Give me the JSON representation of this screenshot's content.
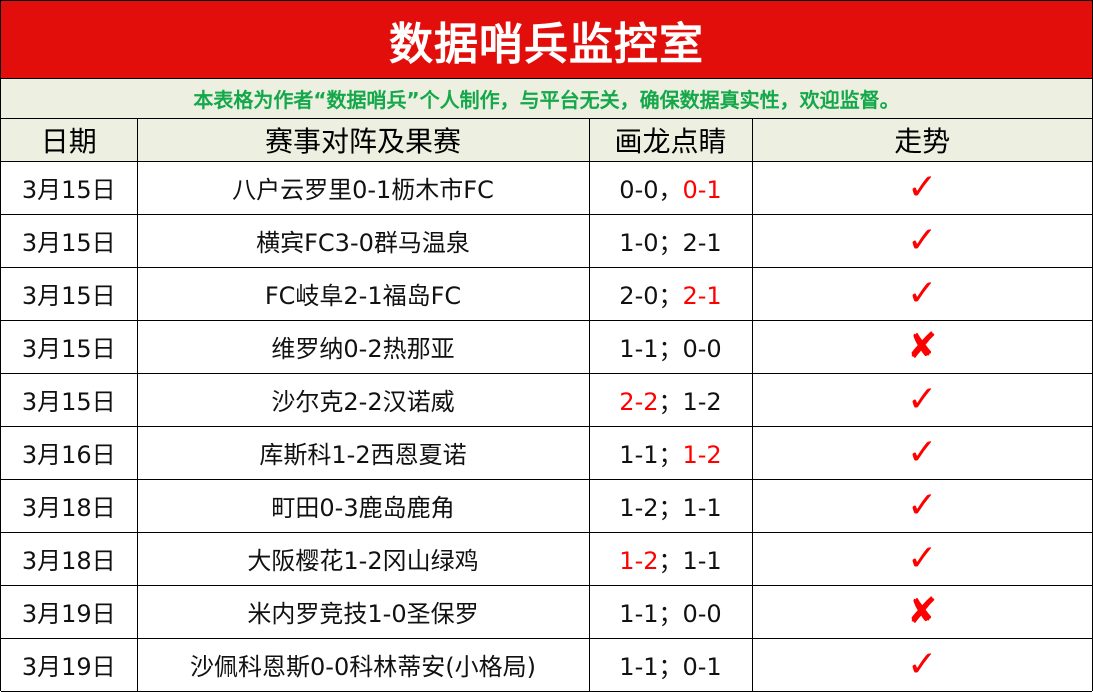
{
  "title": "数据哨兵监控室",
  "subtitle": "本表格为作者“数据哨兵”个人制作，与平台无关，确保数据真实性，欢迎监督。",
  "headers": [
    "日期",
    "赛事对阵及果赛",
    "画龙点睛",
    "走势"
  ],
  "colors": {
    "title_bg": "#e20e0b",
    "subtitle_text": "#14a84a",
    "highlight": "#ff0000",
    "header_bg": "#edf0e0"
  },
  "rows": [
    {
      "date": "3月15日",
      "match": "八户云罗里0-1枥木市FC",
      "pick1": "0-0",
      "sep": "，",
      "pick2": "0-1",
      "pick1_red": false,
      "pick2_red": true,
      "trend": "✓",
      "trend_icon": "check-icon"
    },
    {
      "date": "3月15日",
      "match": "横宾FC3-0群马温泉",
      "pick1": "1-0",
      "sep": "；",
      "pick2": "2-1",
      "pick1_red": false,
      "pick2_red": false,
      "trend": "✓",
      "trend_icon": "check-icon"
    },
    {
      "date": "3月15日",
      "match": "FC岐阜2-1福岛FC",
      "pick1": "2-0",
      "sep": "；",
      "pick2": "2-1",
      "pick1_red": false,
      "pick2_red": true,
      "trend": "✓",
      "trend_icon": "check-icon"
    },
    {
      "date": "3月15日",
      "match": "维罗纳0-2热那亚",
      "pick1": "1-1",
      "sep": "；",
      "pick2": "0-0",
      "pick1_red": false,
      "pick2_red": false,
      "trend": "✘",
      "trend_icon": "cross-icon"
    },
    {
      "date": "3月15日",
      "match": "沙尔克2-2汉诺威",
      "pick1": "2-2",
      "sep": "；",
      "pick2": "1-2",
      "pick1_red": true,
      "pick2_red": false,
      "trend": "✓",
      "trend_icon": "check-icon"
    },
    {
      "date": "3月16日",
      "match": "库斯科1-2西恩夏诺",
      "pick1": "1-1",
      "sep": "；",
      "pick2": "1-2",
      "pick1_red": false,
      "pick2_red": true,
      "trend": "✓",
      "trend_icon": "check-icon"
    },
    {
      "date": "3月18日",
      "match": "町田0-3鹿岛鹿角",
      "pick1": "1-2",
      "sep": "；",
      "pick2": "1-1",
      "pick1_red": false,
      "pick2_red": false,
      "trend": "✓",
      "trend_icon": "check-icon"
    },
    {
      "date": "3月18日",
      "match": "大阪樱花1-2冈山绿鸡",
      "pick1": "1-2",
      "sep": "；",
      "pick2": "1-1",
      "pick1_red": true,
      "pick2_red": false,
      "trend": "✓",
      "trend_icon": "check-icon"
    },
    {
      "date": "3月19日",
      "match": "米内罗竞技1-0圣保罗",
      "pick1": "1-1",
      "sep": "；",
      "pick2": "0-0",
      "pick1_red": false,
      "pick2_red": false,
      "trend": "✘",
      "trend_icon": "cross-icon"
    },
    {
      "date": "3月19日",
      "match": "沙佩科恩斯0-0科林蒂安(小格局)",
      "pick1": "1-1",
      "sep": "；",
      "pick2": "0-1",
      "pick1_red": false,
      "pick2_red": false,
      "trend": "✓",
      "trend_icon": "check-icon"
    }
  ]
}
